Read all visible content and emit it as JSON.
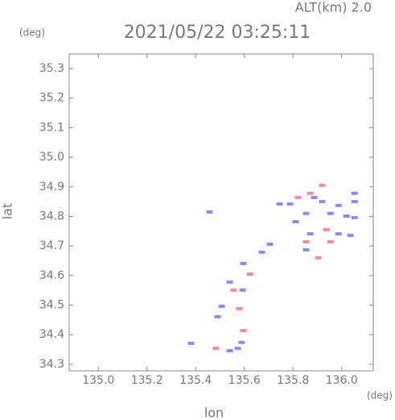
{
  "chart_data": {
    "type": "scatter",
    "title": "2021/05/22 03:25:11",
    "subtitle": "ALT(km) 2.0",
    "y_unit": "(deg)",
    "x_unit": "(deg)",
    "x_label": "lon",
    "y_label": "lat",
    "xlim": [
      134.88,
      136.13
    ],
    "ylim": [
      34.278,
      35.349
    ],
    "xticks": [
      {
        "value": 135.0,
        "label": "135.0"
      },
      135.2,
      135.4,
      135.6,
      135.8,
      {
        "value": 136.0,
        "label": "136.0"
      }
    ],
    "yticks": [
      34.3,
      34.4,
      34.5,
      34.6,
      34.7,
      34.8,
      34.9,
      {
        "value": 35.0,
        "label": "35.0"
      },
      35.1,
      35.2,
      35.3
    ],
    "series": [
      {
        "color": "#8c8cf0",
        "x": [
          135.745,
          135.788,
          135.887,
          135.92,
          135.987,
          136.053,
          136.053,
          135.854,
          135.954,
          136.02,
          136.053,
          135.871,
          135.987,
          136.036,
          135.457,
          135.705,
          135.672,
          135.854,
          135.596,
          135.54,
          135.593,
          135.507,
          135.49,
          135.54,
          135.573,
          135.381,
          135.589,
          135.811
        ],
        "values": [
          34.842,
          34.842,
          34.864,
          34.85,
          34.837,
          34.85,
          34.878,
          34.81,
          34.81,
          34.801,
          34.796,
          34.741,
          34.741,
          34.736,
          34.815,
          34.706,
          34.679,
          34.687,
          34.641,
          34.578,
          34.551,
          34.496,
          34.461,
          34.346,
          34.354,
          34.371,
          34.374,
          34.782
        ]
      },
      {
        "color": "#f08c9c",
        "x": [
          135.871,
          135.92,
          135.854,
          135.937,
          135.904,
          135.556,
          135.579,
          135.596,
          135.483,
          135.623,
          135.821,
          135.954
        ],
        "values": [
          34.878,
          34.905,
          34.714,
          34.755,
          34.66,
          34.551,
          34.488,
          34.414,
          34.354,
          34.605,
          34.864,
          34.714
        ]
      }
    ]
  }
}
